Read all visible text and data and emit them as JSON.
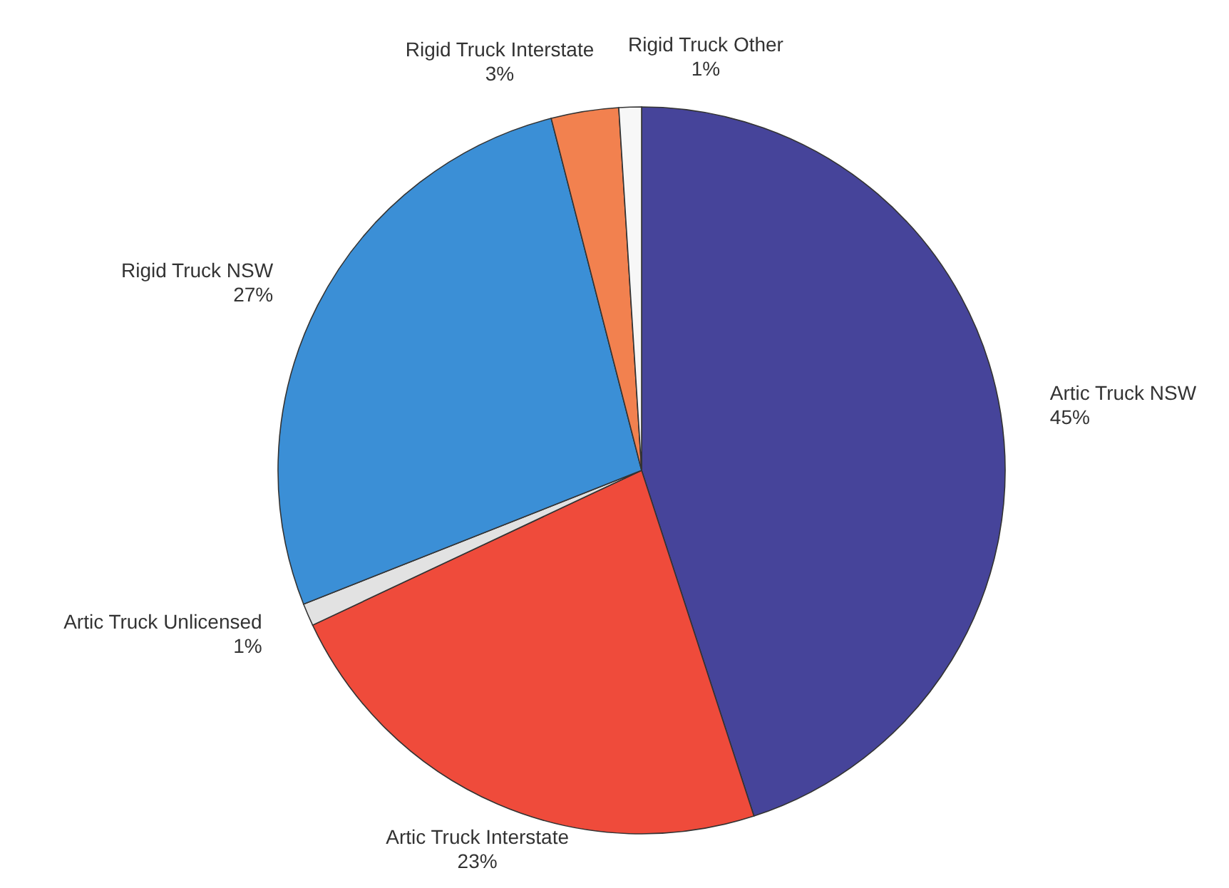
{
  "chart_data": {
    "type": "pie",
    "categories": [
      "Artic Truck NSW",
      "Artic Truck Interstate",
      "Artic Truck Unlicensed",
      "Rigid Truck NSW",
      "Rigid Truck Interstate",
      "Rigid Truck Other"
    ],
    "values": [
      45,
      23,
      1,
      27,
      3,
      1
    ],
    "value_labels": [
      "45%",
      "23%",
      "1%",
      "27%",
      "3%",
      "1%"
    ],
    "colors": [
      "#46449a",
      "#ef4b3b",
      "#e2e2e2",
      "#3b8fd6",
      "#f2814f",
      "#f7f7f7"
    ]
  }
}
